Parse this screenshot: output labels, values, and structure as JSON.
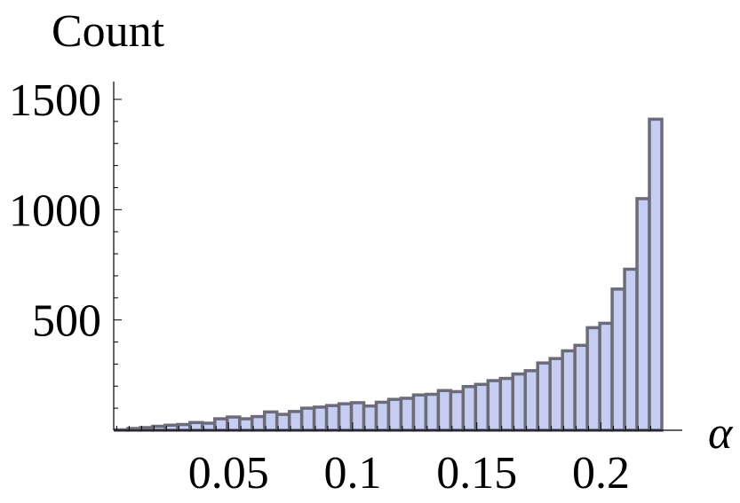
{
  "chart_data": {
    "type": "bar",
    "title": "",
    "xlabel": "α",
    "ylabel": "Count",
    "xlim": [
      0.0045,
      0.227
    ],
    "ylim": [
      0,
      1500
    ],
    "grid": false,
    "x_ticks": [
      {
        "value": 0.05,
        "label": "0.05"
      },
      {
        "value": 0.1,
        "label": "0.1"
      },
      {
        "value": 0.15,
        "label": "0.15"
      },
      {
        "value": 0.2,
        "label": "0.2"
      }
    ],
    "y_ticks": [
      {
        "value": 500,
        "label": "500"
      },
      {
        "value": 1000,
        "label": "1000"
      },
      {
        "value": 1500,
        "label": "1500"
      }
    ],
    "bin_start": 0.0045,
    "bin_width": 0.005,
    "values": [
      2,
      8,
      12,
      18,
      23,
      26,
      35,
      32,
      52,
      60,
      52,
      62,
      83,
      72,
      85,
      100,
      105,
      112,
      120,
      125,
      110,
      127,
      140,
      145,
      160,
      163,
      180,
      175,
      198,
      208,
      225,
      235,
      255,
      270,
      305,
      325,
      360,
      385,
      465,
      485,
      640,
      730,
      1050,
      1410
    ],
    "colors": {
      "bar_fill": "#c5cdf2",
      "bar_stroke": "#6b6b7a",
      "axis": "#000000"
    }
  }
}
